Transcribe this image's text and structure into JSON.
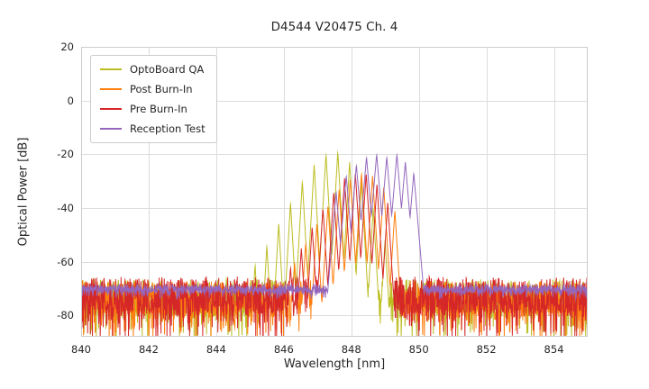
{
  "chart_data": {
    "type": "line",
    "title": "D4544 V20475 Ch. 4",
    "xlabel": "Wavelength [nm]",
    "ylabel": "Optical Power [dB]",
    "xlim": [
      840,
      855
    ],
    "ylim": [
      -88,
      20
    ],
    "xticks": [
      840,
      842,
      844,
      846,
      848,
      850,
      852,
      854
    ],
    "yticks": [
      20,
      0,
      -20,
      -40,
      -60,
      -80
    ],
    "grid": true,
    "grid_color": "#dcdcdc",
    "axis_border_color": "#cccccc",
    "legend_position": "upper left",
    "series": [
      {
        "name": "OptoBoard QA",
        "color": "#bcbd22",
        "mode_slope": 220,
        "noise_base": -73,
        "noise_spread": 13,
        "noise_spike": 15,
        "modes": [
          [
            845.15,
            -61
          ],
          [
            845.5,
            -54
          ],
          [
            845.85,
            -46
          ],
          [
            846.2,
            -38
          ],
          [
            846.55,
            -30
          ],
          [
            846.9,
            -24
          ],
          [
            847.25,
            -20
          ],
          [
            847.6,
            -19
          ],
          [
            847.95,
            -23
          ],
          [
            848.3,
            -30
          ],
          [
            848.65,
            -40
          ],
          [
            849.0,
            -52
          ]
        ]
      },
      {
        "name": "Post Burn-In",
        "color": "#ff7f0e",
        "mode_slope": 200,
        "noise_base": -73.5,
        "noise_spread": 13,
        "noise_spike": 14,
        "modes": [
          [
            846.32,
            -60
          ],
          [
            846.65,
            -53
          ],
          [
            846.98,
            -46
          ],
          [
            847.31,
            -39
          ],
          [
            847.64,
            -33
          ],
          [
            847.97,
            -29
          ],
          [
            848.3,
            -27
          ],
          [
            848.63,
            -28
          ],
          [
            848.96,
            -32
          ],
          [
            849.29,
            -41
          ]
        ]
      },
      {
        "name": "Pre Burn-In",
        "color": "#d62728",
        "mode_slope": 200,
        "noise_base": -72.5,
        "noise_spread": 14,
        "noise_spike": 15,
        "modes": [
          [
            846.2,
            -62
          ],
          [
            846.52,
            -55
          ],
          [
            846.84,
            -47
          ],
          [
            847.16,
            -40
          ],
          [
            847.48,
            -34
          ],
          [
            847.8,
            -29
          ],
          [
            848.12,
            -27
          ],
          [
            848.44,
            -27
          ],
          [
            848.76,
            -31
          ],
          [
            849.08,
            -38
          ]
        ]
      },
      {
        "name": "Reception Test",
        "color": "#9467bd",
        "mode_slope": 150,
        "noise_base": -70,
        "noise_spread": 2.6,
        "noise_spike": 3,
        "modes": [
          [
            847.55,
            -34
          ],
          [
            847.85,
            -28
          ],
          [
            848.15,
            -24
          ],
          [
            848.45,
            -21
          ],
          [
            848.75,
            -20
          ],
          [
            849.05,
            -21
          ],
          [
            849.35,
            -20
          ],
          [
            849.6,
            -23
          ],
          [
            849.85,
            -27
          ]
        ]
      }
    ]
  }
}
